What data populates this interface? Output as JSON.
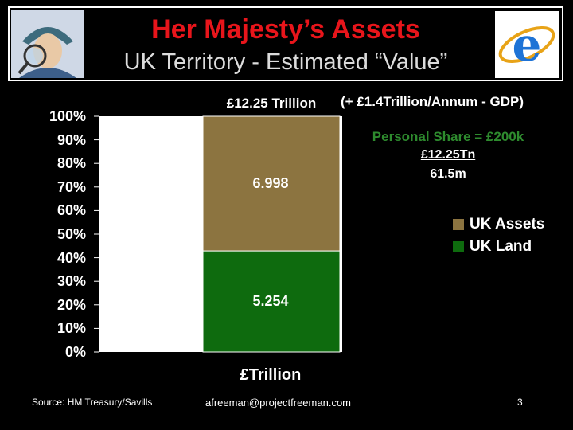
{
  "header": {
    "title": "Her Majesty’s Assets",
    "subtitle": "UK Territory - Estimated “Value”"
  },
  "annotations": {
    "total": "£12.25 Trillion",
    "gdp": "(+ £1.4Trillion/Annum - GDP)",
    "personal_share": "Personal Share = £200k",
    "numerator": "£12.25Tn",
    "denominator": "61.5m"
  },
  "chart_data": {
    "type": "bar",
    "stacked": "percent",
    "categories": [
      "£Trillion"
    ],
    "series": [
      {
        "name": "UK Land",
        "values": [
          5.254
        ],
        "color": "#0e6b0e"
      },
      {
        "name": "UK Assets",
        "values": [
          6.998
        ],
        "color": "#8c7440"
      }
    ],
    "xlabel": "£Trillion",
    "ylim": [
      0,
      100
    ],
    "yticks": [
      "0%",
      "10%",
      "20%",
      "30%",
      "40%",
      "50%",
      "60%",
      "70%",
      "80%",
      "90%",
      "100%"
    ],
    "legend": "right",
    "grid": false
  },
  "footer": {
    "source": "Source: HM Treasury/Savills",
    "email": "afreeman@projectfreeman.com",
    "page": "3"
  },
  "colors": {
    "title": "#e8151b",
    "personal_share": "#2e8b2e"
  }
}
